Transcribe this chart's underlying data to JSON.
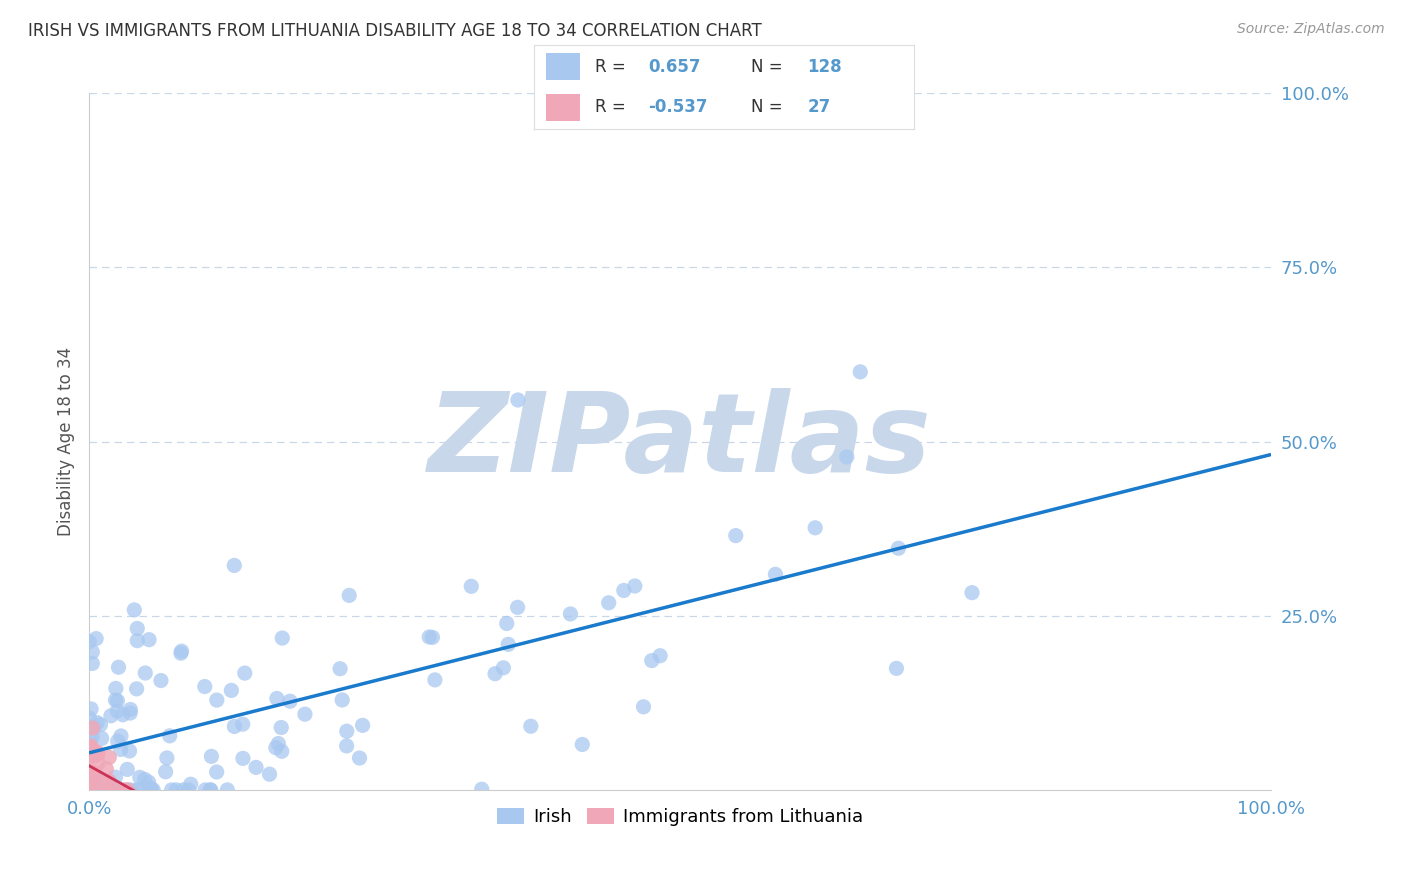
{
  "title": "IRISH VS IMMIGRANTS FROM LITHUANIA DISABILITY AGE 18 TO 34 CORRELATION CHART",
  "source": "Source: ZipAtlas.com",
  "ylabel": "Disability Age 18 to 34",
  "xlabel": "",
  "xlim": [
    0.0,
    1.0
  ],
  "ylim": [
    0.0,
    1.0
  ],
  "irish_R": 0.657,
  "irish_N": 128,
  "lith_R": -0.537,
  "lith_N": 27,
  "irish_color": "#a8c8f0",
  "lith_color": "#f0a8b8",
  "irish_line_color": "#1a7acc",
  "lith_line_color": "#cc3355",
  "watermark": "ZIPatlas",
  "watermark_color": "#c8d8ea",
  "background_color": "#ffffff",
  "grid_color": "#c8d8e8",
  "title_color": "#333333",
  "tick_color": "#5599cc",
  "legend_label_color": "#333333",
  "legend_value_color": "#5599cc",
  "source_color": "#999999"
}
